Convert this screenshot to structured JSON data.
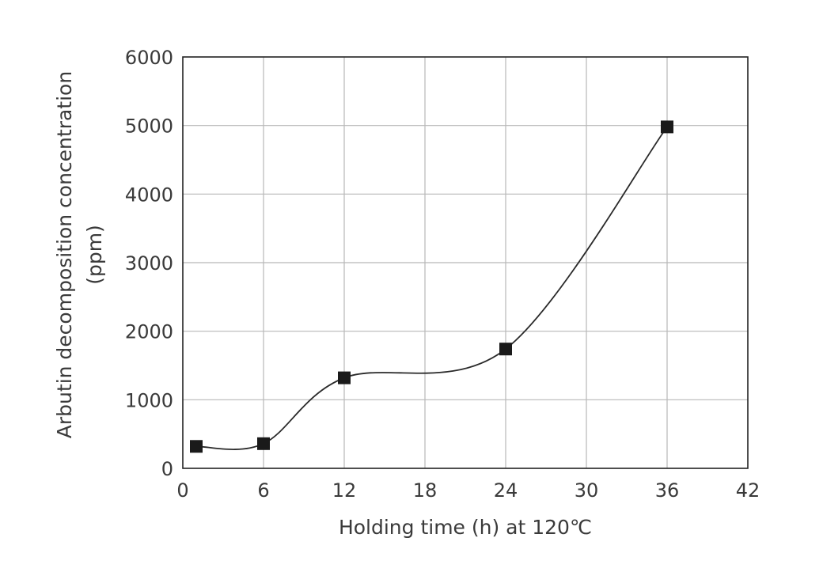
{
  "chart_data": {
    "type": "line",
    "title": "",
    "xlabel": "Holding time (h) at 120℃",
    "ylabel_line1": "Arbutin decomposition concentration",
    "ylabel_line2": "(ppm)",
    "xlim": [
      0,
      42
    ],
    "ylim": [
      0,
      6000
    ],
    "x_ticks": [
      0,
      6,
      12,
      18,
      24,
      30,
      36,
      42
    ],
    "y_ticks": [
      0,
      1000,
      2000,
      3000,
      4000,
      5000,
      6000
    ],
    "grid": true,
    "marker": "square",
    "line": "smooth",
    "colors": {
      "marker": "#1a1a1a",
      "line": "#2a2a2a",
      "grid": "#b8b8b8",
      "axis": "#222222"
    },
    "series": [
      {
        "x": [
          1,
          6,
          12,
          24,
          36
        ],
        "y": [
          320,
          360,
          1320,
          1740,
          4980
        ]
      }
    ]
  }
}
